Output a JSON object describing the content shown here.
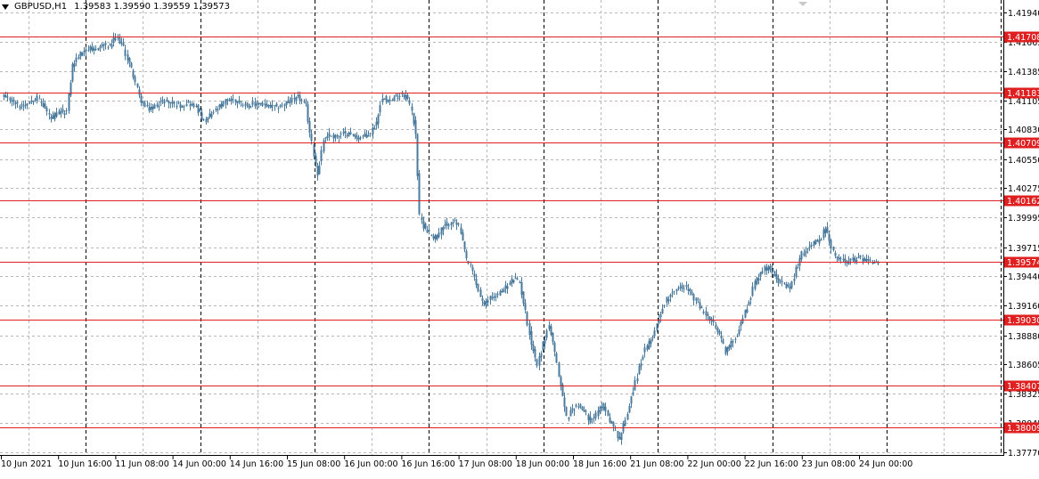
{
  "header": {
    "symbol": "GBPUSD,H1",
    "ohlc": "1.39583 1.39590 1.39559 1.39573"
  },
  "colors": {
    "candle": "#4a7a9c",
    "level": "#e02020",
    "level_label_bg": "#e02020",
    "grid": "#b8b8b8",
    "period_sep": "#000000",
    "background": "#ffffff"
  },
  "chart_data": {
    "type": "candlestick",
    "ylim": [
      1.3777,
      1.4194
    ],
    "y_ticks": [
      "1.41940",
      "1.41665",
      "1.41385",
      "1.41105",
      "1.40830",
      "1.40550",
      "1.40275",
      "1.39995",
      "1.39715",
      "1.39440",
      "1.39160",
      "1.38880",
      "1.38605",
      "1.38325",
      "1.38045",
      "1.37770"
    ],
    "x_ticks": [
      "10 Jun 2021",
      "10 Jun 16:00",
      "11 Jun 08:00",
      "14 Jun 00:00",
      "14 Jun 16:00",
      "15 Jun 08:00",
      "16 Jun 00:00",
      "16 Jun 16:00",
      "17 Jun 08:00",
      "18 Jun 00:00",
      "18 Jun 16:00",
      "21 Jun 08:00",
      "22 Jun 00:00",
      "22 Jun 16:00",
      "23 Jun 08:00",
      "24 Jun 00:00"
    ],
    "levels": [
      "1.41708",
      "1.41183",
      "1.40709",
      "1.40162",
      "1.39574",
      "1.39030",
      "1.38407",
      "1.38009"
    ],
    "grid": true,
    "anchors": [
      [
        0,
        1.4113
      ],
      [
        4,
        1.4111
      ],
      [
        8,
        1.4105
      ],
      [
        12,
        1.4108
      ],
      [
        16,
        1.4114
      ],
      [
        20,
        1.4106
      ],
      [
        24,
        1.4093
      ],
      [
        28,
        1.4099
      ],
      [
        32,
        1.41
      ],
      [
        35,
        1.4144
      ],
      [
        38,
        1.4153
      ],
      [
        42,
        1.416
      ],
      [
        46,
        1.4158
      ],
      [
        50,
        1.4163
      ],
      [
        54,
        1.4162
      ],
      [
        57,
        1.417
      ],
      [
        60,
        1.4165
      ],
      [
        63,
        1.415
      ],
      [
        66,
        1.4135
      ],
      [
        69,
        1.4114
      ],
      [
        72,
        1.4104
      ],
      [
        75,
        1.4102
      ],
      [
        78,
        1.4107
      ],
      [
        82,
        1.411
      ],
      [
        86,
        1.4108
      ],
      [
        90,
        1.4106
      ],
      [
        94,
        1.4108
      ],
      [
        98,
        1.4105
      ],
      [
        102,
        1.409
      ],
      [
        106,
        1.4098
      ],
      [
        110,
        1.4104
      ],
      [
        114,
        1.4112
      ],
      [
        118,
        1.411
      ],
      [
        122,
        1.4108
      ],
      [
        126,
        1.4106
      ],
      [
        130,
        1.4108
      ],
      [
        134,
        1.4105
      ],
      [
        138,
        1.4104
      ],
      [
        142,
        1.4106
      ],
      [
        146,
        1.411
      ],
      [
        150,
        1.4114
      ],
      [
        154,
        1.4105
      ],
      [
        156,
        1.408
      ],
      [
        158,
        1.406
      ],
      [
        160,
        1.404
      ],
      [
        163,
        1.4074
      ],
      [
        166,
        1.4078
      ],
      [
        169,
        1.4076
      ],
      [
        172,
        1.4078
      ],
      [
        175,
        1.408
      ],
      [
        178,
        1.4078
      ],
      [
        181,
        1.4075
      ],
      [
        184,
        1.4077
      ],
      [
        187,
        1.408
      ],
      [
        190,
        1.409
      ],
      [
        192,
        1.4108
      ],
      [
        194,
        1.4115
      ],
      [
        197,
        1.411
      ],
      [
        200,
        1.4114
      ],
      [
        203,
        1.4117
      ],
      [
        206,
        1.4112
      ],
      [
        208,
        1.41
      ],
      [
        210,
        1.408
      ],
      [
        212,
        1.4
      ],
      [
        214,
        1.3992
      ],
      [
        217,
        1.3985
      ],
      [
        220,
        1.398
      ],
      [
        223,
        1.3988
      ],
      [
        226,
        1.3993
      ],
      [
        229,
        1.3996
      ],
      [
        232,
        1.3992
      ],
      [
        234,
        1.3975
      ],
      [
        236,
        1.396
      ],
      [
        239,
        1.3948
      ],
      [
        242,
        1.393
      ],
      [
        245,
        1.3915
      ],
      [
        248,
        1.3925
      ],
      [
        251,
        1.3925
      ],
      [
        254,
        1.393
      ],
      [
        257,
        1.3935
      ],
      [
        260,
        1.3942
      ],
      [
        263,
        1.3938
      ],
      [
        266,
        1.391
      ],
      [
        269,
        1.388
      ],
      [
        272,
        1.386
      ],
      [
        275,
        1.388
      ],
      [
        278,
        1.3898
      ],
      [
        281,
        1.387
      ],
      [
        284,
        1.384
      ],
      [
        287,
        1.381
      ],
      [
        290,
        1.3818
      ],
      [
        293,
        1.3822
      ],
      [
        296,
        1.3815
      ],
      [
        299,
        1.3808
      ],
      [
        302,
        1.3812
      ],
      [
        305,
        1.3822
      ],
      [
        308,
        1.3812
      ],
      [
        311,
        1.38
      ],
      [
        314,
        1.379
      ],
      [
        317,
        1.3808
      ],
      [
        320,
        1.383
      ],
      [
        323,
        1.385
      ],
      [
        326,
        1.387
      ],
      [
        329,
        1.388
      ],
      [
        332,
        1.3893
      ],
      [
        335,
        1.391
      ],
      [
        338,
        1.3922
      ],
      [
        341,
        1.393
      ],
      [
        344,
        1.3932
      ],
      [
        347,
        1.3935
      ],
      [
        350,
        1.3928
      ],
      [
        353,
        1.392
      ],
      [
        356,
        1.3912
      ],
      [
        359,
        1.3906
      ],
      [
        362,
        1.3898
      ],
      [
        365,
        1.3888
      ],
      [
        368,
        1.3873
      ],
      [
        371,
        1.388
      ],
      [
        374,
        1.389
      ],
      [
        377,
        1.3905
      ],
      [
        380,
        1.392
      ],
      [
        383,
        1.3938
      ],
      [
        386,
        1.3948
      ],
      [
        389,
        1.3953
      ],
      [
        392,
        1.395
      ],
      [
        395,
        1.394
      ],
      [
        398,
        1.3935
      ],
      [
        401,
        1.3932
      ],
      [
        404,
        1.395
      ],
      [
        407,
        1.3965
      ],
      [
        410,
        1.3972
      ],
      [
        413,
        1.3975
      ],
      [
        416,
        1.3978
      ],
      [
        419,
        1.399
      ],
      [
        422,
        1.397
      ],
      [
        425,
        1.396
      ],
      [
        428,
        1.396
      ],
      [
        431,
        1.3958
      ],
      [
        434,
        1.396
      ],
      [
        437,
        1.3961
      ],
      [
        440,
        1.396
      ],
      [
        443,
        1.3958
      ],
      [
        446,
        1.3957
      ]
    ]
  }
}
